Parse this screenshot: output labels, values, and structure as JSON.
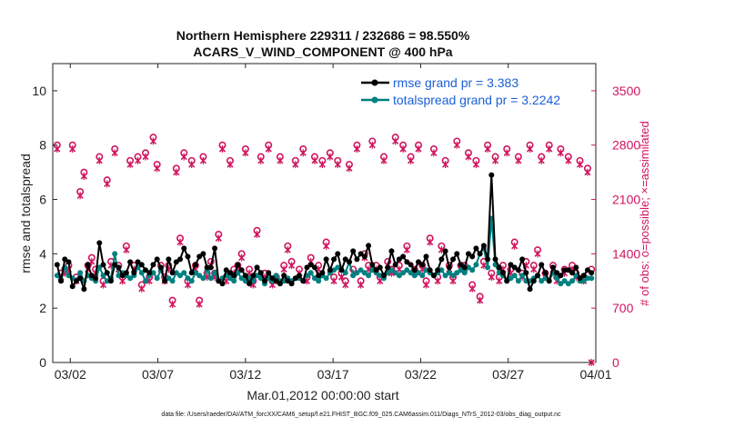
{
  "chart_data": {
    "type": "line",
    "title_line1": "Northern Hemisphere 229311 / 232686 = 98.550%",
    "title_line2": "ACARS_V_WIND_COMPONENT @ 400 hPa",
    "xlabel": "Mar.01,2012 00:00:00 start",
    "ylabel": "rmse and totalspread",
    "y2label": "# of obs: o=possible; ×=assimilated",
    "footnote": "data file: /Users/raeder/DAI/ATM_forcXX/CAM6_setup/f.e21.FHIST_BGC.f09_025.CAM6assim.011/Diags_NTrS_2012-03/obs_diag_output.nc",
    "xlim": [
      0,
      31
    ],
    "ylim": [
      0,
      11
    ],
    "y2lim": [
      0,
      3850
    ],
    "x_ticks": [
      1,
      6,
      11,
      16,
      21,
      26,
      31
    ],
    "x_tick_labels": [
      "03/02",
      "03/07",
      "03/12",
      "03/17",
      "03/22",
      "03/27",
      "04/01"
    ],
    "y_ticks": [
      "0",
      "2",
      "4",
      "6",
      "8",
      "10"
    ],
    "y2_ticks": [
      "0",
      "700",
      "1400",
      "2100",
      "2800",
      "3500"
    ],
    "colors": {
      "rmse": "#000000",
      "spread": "#008080",
      "obs": "#d0155f",
      "legend_text": "#1a5fd8",
      "right_axis": "#d0155f"
    },
    "series": [
      {
        "name": "rmse grand pr = 3.383",
        "values": [
          3.6,
          3.0,
          3.8,
          3.7,
          2.8,
          3.0,
          3.1,
          2.7,
          3.6,
          3.2,
          3.1,
          4.4,
          3.6,
          3.3,
          3.0,
          3.6,
          3.5,
          3.2,
          3.3,
          3.7,
          3.3,
          3.7,
          3.6,
          3.4,
          3.3,
          3.6,
          3.8,
          3.5,
          3.0,
          3.8,
          3.3,
          3.7,
          3.8,
          4.2,
          3.9,
          3.3,
          3.6,
          3.9,
          4.0,
          3.5,
          3.5,
          4.2,
          3.0,
          2.9,
          3.4,
          3.3,
          3.2,
          3.6,
          3.4,
          3.2,
          2.9,
          3.2,
          3.5,
          3.3,
          3.0,
          3.3,
          3.1,
          3.0,
          2.9,
          3.2,
          3.0,
          2.9,
          3.1,
          3.2,
          3.0,
          3.5,
          3.6,
          3.5,
          3.2,
          3.3,
          3.8,
          3.4,
          3.8,
          4.0,
          3.4,
          3.8,
          3.7,
          4.1,
          3.8,
          4.0,
          3.9,
          4.3,
          3.6,
          3.4,
          3.5,
          3.2,
          3.5,
          4.1,
          3.6,
          3.8,
          3.9,
          3.7,
          3.6,
          3.4,
          3.7,
          3.6,
          3.9,
          3.4,
          3.2,
          3.4,
          3.8,
          4.1,
          3.5,
          3.8,
          4.0,
          3.6,
          3.5,
          4.0,
          3.9,
          4.2,
          4.0,
          4.3,
          3.8,
          6.9,
          3.8,
          3.5,
          3.3,
          3.0,
          3.6,
          3.5,
          3.4,
          3.8,
          3.3,
          2.7,
          3.0,
          3.2,
          3.6,
          3.3,
          3.0,
          3.5,
          3.3,
          3.2,
          3.4,
          3.4,
          3.3,
          3.5,
          3.1,
          3.2,
          3.4,
          3.3
        ]
      },
      {
        "name": "totalspread grand pr = 3.2242",
        "values": [
          3.2,
          3.0,
          3.5,
          3.2,
          3.1,
          3.0,
          3.3,
          3.0,
          3.2,
          3.1,
          3.0,
          3.5,
          3.2,
          3.0,
          3.1,
          4.0,
          3.2,
          3.3,
          3.2,
          3.1,
          3.2,
          3.5,
          3.3,
          3.0,
          3.2,
          3.3,
          3.1,
          3.4,
          3.0,
          3.1,
          3.0,
          3.3,
          3.2,
          3.3,
          3.1,
          3.0,
          3.3,
          3.2,
          3.1,
          3.4,
          3.1,
          3.3,
          3.0,
          3.1,
          3.2,
          3.1,
          3.0,
          3.3,
          3.1,
          3.0,
          3.1,
          3.0,
          3.2,
          3.1,
          2.9,
          3.1,
          3.0,
          3.2,
          3.0,
          3.0,
          3.1,
          3.0,
          3.1,
          3.1,
          3.0,
          3.2,
          3.3,
          3.1,
          3.0,
          3.2,
          3.1,
          3.3,
          3.4,
          3.5,
          3.4,
          3.3,
          3.7,
          3.2,
          3.3,
          3.4,
          3.3,
          3.2,
          3.4,
          3.3,
          3.2,
          3.1,
          3.3,
          3.4,
          3.3,
          3.2,
          3.3,
          3.4,
          3.3,
          3.2,
          3.3,
          3.2,
          3.4,
          3.3,
          3.2,
          3.3,
          3.4,
          3.2,
          3.3,
          3.2,
          3.3,
          3.4,
          3.3,
          3.5,
          3.4,
          3.6,
          4.0,
          4.2,
          3.5,
          5.3,
          3.6,
          3.3,
          3.2,
          3.0,
          3.1,
          3.2,
          3.0,
          3.2,
          3.0,
          3.0,
          3.1,
          3.2,
          3.0,
          3.1,
          3.0,
          3.3,
          3.1,
          2.9,
          3.0,
          2.9,
          3.0,
          3.2,
          3.0,
          3.0,
          3.1,
          3.1
        ]
      },
      {
        "name": "obs possible",
        "values": [
          2800,
          1150,
          1200,
          1250,
          2800,
          1100,
          2200,
          2450,
          1250,
          1350,
          1200,
          2650,
          1050,
          2350,
          1300,
          2750,
          1250,
          1100,
          1500,
          2600,
          1250,
          2650,
          1000,
          2700,
          1100,
          2900,
          2550,
          1250,
          1100,
          1250,
          800,
          2500,
          1600,
          2700,
          1050,
          2600,
          1250,
          800,
          2650,
          1150,
          1300,
          1150,
          1650,
          2800,
          1100,
          2600,
          1200,
          1250,
          1400,
          2750,
          1200,
          1050,
          1700,
          2650,
          1150,
          2800,
          1050,
          1100,
          2650,
          1250,
          1500,
          1300,
          2600,
          1200,
          2750,
          1100,
          1350,
          2650,
          1250,
          2600,
          1550,
          2700,
          1100,
          2600,
          1150,
          1050,
          2550,
          1200,
          2800,
          1050,
          1400,
          1250,
          2850,
          1250,
          1100,
          2650,
          1300,
          1200,
          2900,
          1250,
          2800,
          1500,
          2650,
          1200,
          2800,
          1250,
          1050,
          1600,
          2750,
          1100,
          1500,
          2600,
          1250,
          1100,
          2850,
          1250,
          1250,
          2700,
          1000,
          2600,
          850,
          1300,
          2800,
          1150,
          2650,
          1100,
          1250,
          2750,
          1200,
          1550,
          2650,
          1150,
          1300,
          2800,
          1250,
          1450,
          2650,
          1150,
          2800,
          1250,
          1100,
          2750,
          1200,
          2650,
          1250,
          1150,
          2600,
          1100,
          2500,
          1200
        ]
      },
      {
        "name": "obs assimilated",
        "values": [
          2750,
          1100,
          1150,
          1200,
          2750,
          1050,
          2150,
          2400,
          1200,
          1300,
          1150,
          2600,
          1000,
          2300,
          1250,
          2700,
          1200,
          1050,
          1450,
          2550,
          1200,
          2600,
          950,
          2650,
          1050,
          2850,
          2500,
          1200,
          1050,
          1200,
          750,
          2450,
          1550,
          2650,
          1000,
          2550,
          1200,
          750,
          2600,
          1100,
          1250,
          1100,
          1600,
          2750,
          1050,
          2550,
          1150,
          1200,
          1350,
          2700,
          1150,
          1000,
          1650,
          2600,
          1100,
          2750,
          1000,
          1050,
          2600,
          1200,
          1450,
          1250,
          2550,
          1150,
          2700,
          1050,
          1300,
          2600,
          1200,
          2550,
          1500,
          2650,
          1050,
          2550,
          1100,
          1000,
          2500,
          1150,
          2750,
          1000,
          1350,
          1200,
          2800,
          1200,
          1050,
          2600,
          1250,
          1150,
          2850,
          1200,
          2750,
          1450,
          2600,
          1150,
          2750,
          1200,
          1000,
          1550,
          2700,
          1050,
          1450,
          2550,
          1200,
          1050,
          2800,
          1200,
          1200,
          2650,
          950,
          2550,
          800,
          1250,
          2750,
          1100,
          2600,
          1050,
          1200,
          2700,
          1150,
          1500,
          2600,
          1100,
          1250,
          2750,
          1200,
          1400,
          2600,
          1100,
          2750,
          1200,
          1050,
          2700,
          1150,
          2600,
          1200,
          1100,
          2550,
          1050,
          2450,
          0
        ]
      }
    ]
  }
}
